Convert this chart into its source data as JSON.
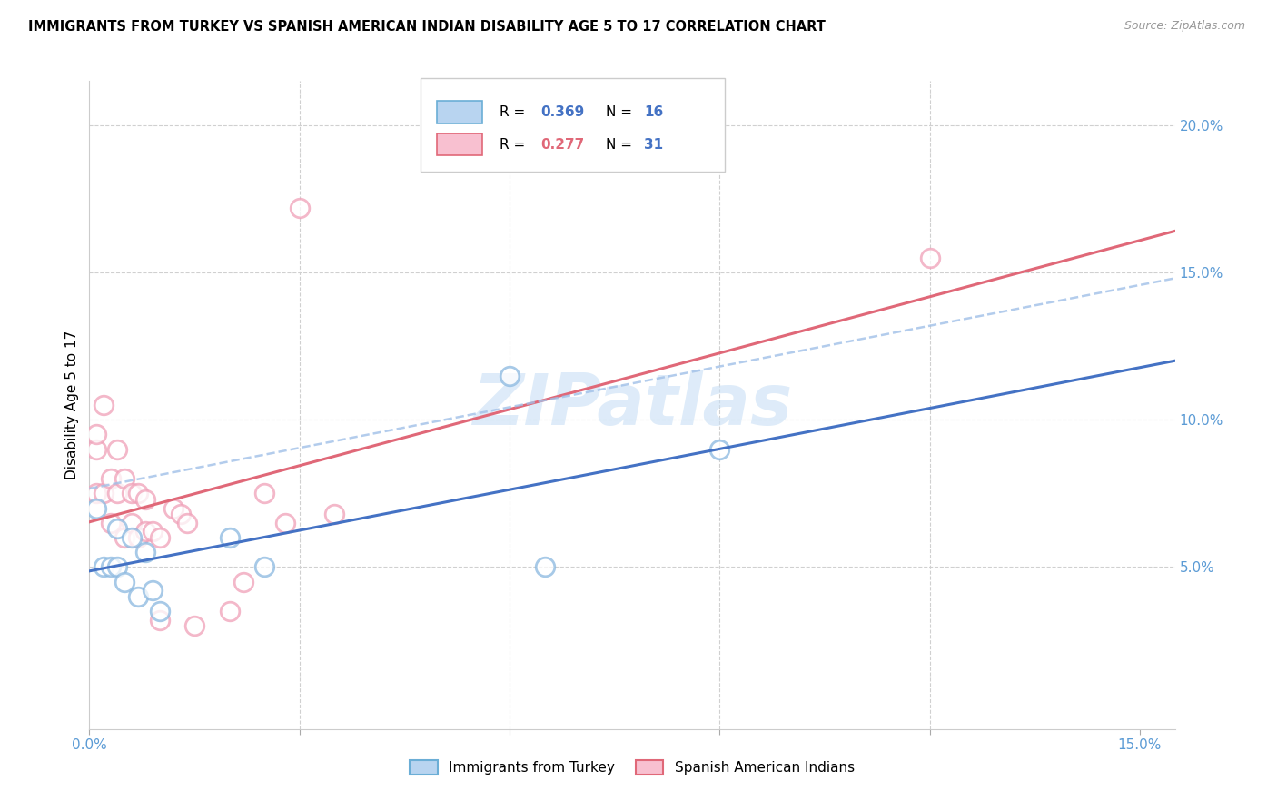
{
  "title": "IMMIGRANTS FROM TURKEY VS SPANISH AMERICAN INDIAN DISABILITY AGE 5 TO 17 CORRELATION CHART",
  "source": "Source: ZipAtlas.com",
  "ylabel": "Disability Age 5 to 17",
  "xlim": [
    0.0,
    0.155
  ],
  "ylim": [
    -0.005,
    0.215
  ],
  "right_yticks": [
    0.05,
    0.1,
    0.15,
    0.2
  ],
  "right_yticklabels": [
    "5.0%",
    "10.0%",
    "15.0%",
    "20.0%"
  ],
  "xtick_positions": [
    0.0,
    0.03,
    0.06,
    0.09,
    0.12,
    0.15
  ],
  "xtick_labels": [
    "0.0%",
    "",
    "",
    "",
    "",
    "15.0%"
  ],
  "blue_scatter_color": "#8ab8e0",
  "pink_scatter_color": "#f0a0b8",
  "blue_line_color": "#4472c4",
  "pink_line_color": "#e06878",
  "dashed_line_color": "#a0c0e8",
  "axis_label_color": "#5b9bd5",
  "grid_color": "#d0d0d0",
  "watermark_color": "#c8dff5",
  "watermark_text": "ZIPatlas",
  "r_blue": "0.369",
  "n_blue": "16",
  "r_pink": "0.277",
  "n_pink": "31",
  "legend1_label": "Immigrants from Turkey",
  "legend2_label": "Spanish American Indians",
  "turkey_x": [
    0.001,
    0.002,
    0.003,
    0.004,
    0.004,
    0.005,
    0.006,
    0.007,
    0.008,
    0.009,
    0.01,
    0.02,
    0.025,
    0.06,
    0.065,
    0.09
  ],
  "turkey_y": [
    0.07,
    0.05,
    0.05,
    0.05,
    0.063,
    0.045,
    0.06,
    0.04,
    0.055,
    0.042,
    0.035,
    0.06,
    0.05,
    0.115,
    0.05,
    0.09
  ],
  "spanish_x": [
    0.001,
    0.001,
    0.001,
    0.002,
    0.002,
    0.003,
    0.003,
    0.004,
    0.004,
    0.005,
    0.005,
    0.006,
    0.006,
    0.007,
    0.007,
    0.008,
    0.008,
    0.009,
    0.01,
    0.01,
    0.012,
    0.013,
    0.014,
    0.015,
    0.02,
    0.022,
    0.025,
    0.028,
    0.03,
    0.035,
    0.12
  ],
  "spanish_y": [
    0.075,
    0.09,
    0.095,
    0.075,
    0.105,
    0.065,
    0.08,
    0.075,
    0.09,
    0.06,
    0.08,
    0.065,
    0.075,
    0.06,
    0.075,
    0.062,
    0.073,
    0.062,
    0.032,
    0.06,
    0.07,
    0.068,
    0.065,
    0.03,
    0.035,
    0.045,
    0.075,
    0.065,
    0.172,
    0.068,
    0.155
  ]
}
